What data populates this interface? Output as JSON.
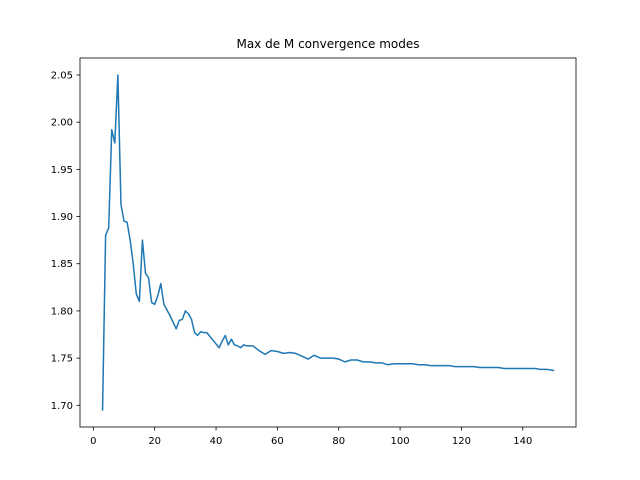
{
  "chart_data": {
    "type": "line",
    "title": "Max de M convergence modes",
    "xlabel": "",
    "ylabel": "",
    "xlim": [
      -4.35,
      157.35
    ],
    "ylim": [
      1.677,
      2.068
    ],
    "x_ticks": [
      0,
      20,
      40,
      60,
      80,
      100,
      120,
      140
    ],
    "x_tick_labels": [
      "0",
      "20",
      "40",
      "60",
      "80",
      "100",
      "120",
      "140"
    ],
    "y_ticks": [
      1.7,
      1.75,
      1.8,
      1.85,
      1.9,
      1.95,
      2.0,
      2.05
    ],
    "y_tick_labels": [
      "1.70",
      "1.75",
      "1.80",
      "1.85",
      "1.90",
      "1.95",
      "2.00",
      "2.05"
    ],
    "grid": false,
    "line_color": "#1f77b4",
    "series": [
      {
        "x": [
          3,
          4,
          5,
          6,
          7,
          8,
          9,
          10,
          11,
          12,
          13,
          14,
          15,
          16,
          17,
          18,
          19,
          20,
          21,
          22,
          23,
          24,
          25,
          26,
          27,
          28,
          29,
          30,
          31,
          32,
          33,
          34,
          35,
          36,
          37,
          38,
          39,
          40,
          41,
          42,
          43,
          44,
          45,
          46,
          47,
          48,
          49,
          50,
          52,
          54,
          56,
          58,
          60,
          62,
          64,
          66,
          68,
          70,
          72,
          74,
          76,
          78,
          80,
          82,
          84,
          86,
          88,
          90,
          92,
          94,
          96,
          98,
          100,
          102,
          104,
          106,
          108,
          110,
          112,
          114,
          116,
          118,
          120,
          122,
          124,
          126,
          128,
          130,
          132,
          134,
          136,
          138,
          140,
          142,
          144,
          146,
          148,
          150
        ],
        "values": [
          1.695,
          1.88,
          1.888,
          1.992,
          1.978,
          2.05,
          1.913,
          1.895,
          1.894,
          1.875,
          1.85,
          1.818,
          1.81,
          1.875,
          1.84,
          1.835,
          1.809,
          1.807,
          1.816,
          1.829,
          1.807,
          1.801,
          1.795,
          1.788,
          1.781,
          1.79,
          1.791,
          1.8,
          1.797,
          1.791,
          1.777,
          1.774,
          1.778,
          1.777,
          1.777,
          1.773,
          1.769,
          1.765,
          1.761,
          1.768,
          1.774,
          1.764,
          1.77,
          1.764,
          1.763,
          1.761,
          1.764,
          1.763,
          1.763,
          1.758,
          1.754,
          1.758,
          1.757,
          1.755,
          1.756,
          1.755,
          1.752,
          1.749,
          1.753,
          1.75,
          1.75,
          1.75,
          1.749,
          1.746,
          1.748,
          1.748,
          1.746,
          1.746,
          1.745,
          1.745,
          1.743,
          1.744,
          1.744,
          1.744,
          1.744,
          1.743,
          1.743,
          1.742,
          1.742,
          1.742,
          1.742,
          1.741,
          1.741,
          1.741,
          1.741,
          1.74,
          1.74,
          1.74,
          1.74,
          1.739,
          1.739,
          1.739,
          1.739,
          1.739,
          1.739,
          1.738,
          1.738,
          1.737
        ]
      }
    ]
  }
}
